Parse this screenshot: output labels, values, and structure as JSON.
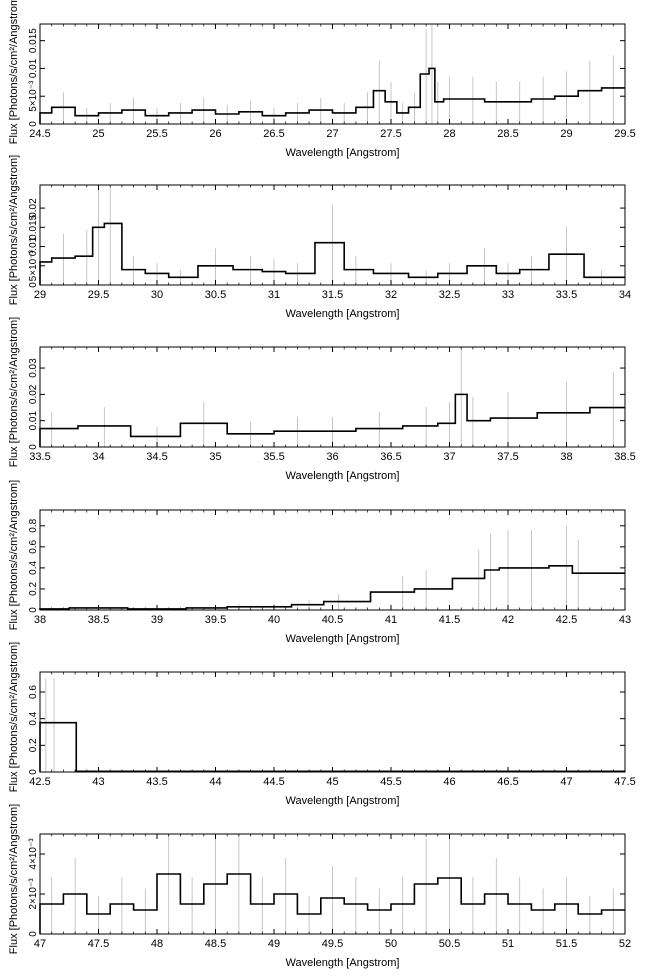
{
  "chart_data": [
    {
      "type": "line",
      "xlabel": "Wavelength [Angstrom]",
      "ylabel": "Flux [Photons/s/cm²/Angstrom]",
      "xlim": [
        24.5,
        29.5
      ],
      "ylim": [
        0,
        0.018
      ],
      "xticks": [
        "24.5",
        "25",
        "25.5",
        "26",
        "26.5",
        "27",
        "27.5",
        "28",
        "28.5",
        "29",
        "29.5"
      ],
      "yticks": [
        {
          "value": 0,
          "label": "0"
        },
        {
          "value": 0.005,
          "label": "5×10⁻³"
        },
        {
          "value": 0.01,
          "label": "0.01"
        },
        {
          "value": 0.015,
          "label": "0.015"
        }
      ],
      "series": [
        {
          "x": [
            24.5,
            24.7,
            24.9,
            25.1,
            25.3,
            25.5,
            25.7,
            25.9,
            26.1,
            26.3,
            26.5,
            26.7,
            26.9,
            27.1,
            27.3,
            27.4,
            27.5,
            27.6,
            27.7,
            27.8,
            27.85,
            27.9,
            28.0,
            28.2,
            28.4,
            28.6,
            28.8,
            29.0,
            29.2,
            29.4
          ],
          "y": [
            0.002,
            0.003,
            0.0015,
            0.002,
            0.0025,
            0.0015,
            0.002,
            0.0025,
            0.0018,
            0.0022,
            0.0015,
            0.002,
            0.0025,
            0.002,
            0.003,
            0.006,
            0.004,
            0.002,
            0.003,
            0.009,
            0.01,
            0.004,
            0.0045,
            0.0045,
            0.004,
            0.004,
            0.0045,
            0.005,
            0.006,
            0.0065
          ]
        }
      ]
    },
    {
      "type": "line",
      "xlabel": "Wavelength [Angstrom]",
      "ylabel": "Flux [Photons/s/cm²/Angstrom]",
      "xlim": [
        29,
        34
      ],
      "ylim": [
        0,
        0.026
      ],
      "xticks": [
        "29",
        "29.5",
        "30",
        "30.5",
        "31",
        "31.5",
        "32",
        "32.5",
        "33",
        "33.5",
        "34"
      ],
      "yticks": [
        {
          "value": 0,
          "label": "0"
        },
        {
          "value": 0.005,
          "label": "5×10⁻³"
        },
        {
          "value": 0.01,
          "label": "0.01"
        },
        {
          "value": 0.015,
          "label": "0.015"
        },
        {
          "value": 0.02,
          "label": "0.02"
        }
      ],
      "series": [
        {
          "x": [
            29.0,
            29.2,
            29.4,
            29.5,
            29.6,
            29.8,
            30.0,
            30.2,
            30.5,
            30.8,
            31.0,
            31.2,
            31.5,
            31.7,
            32.0,
            32.3,
            32.5,
            32.8,
            33.0,
            33.2,
            33.5,
            33.8
          ],
          "y": [
            0.006,
            0.007,
            0.0075,
            0.015,
            0.016,
            0.004,
            0.003,
            0.002,
            0.005,
            0.004,
            0.0035,
            0.003,
            0.011,
            0.004,
            0.003,
            0.002,
            0.003,
            0.005,
            0.003,
            0.004,
            0.008,
            0.002
          ]
        }
      ]
    },
    {
      "type": "line",
      "xlabel": "Wavelength [Angstrom]",
      "ylabel": "Flux [Photons/s/cm²/Angstrom]",
      "xlim": [
        33.5,
        38.5
      ],
      "ylim": [
        0,
        0.038
      ],
      "xticks": [
        "33.5",
        "34",
        "34.5",
        "35",
        "35.5",
        "36",
        "36.5",
        "37",
        "37.5",
        "38",
        "38.5"
      ],
      "yticks": [
        {
          "value": 0,
          "label": "0"
        },
        {
          "value": 0.01,
          "label": "0.01"
        },
        {
          "value": 0.02,
          "label": "0.02"
        },
        {
          "value": 0.03,
          "label": "0.03"
        }
      ],
      "series": [
        {
          "x": [
            33.6,
            34.05,
            34.5,
            34.9,
            35.3,
            35.7,
            36.0,
            36.4,
            36.8,
            37.0,
            37.1,
            37.2,
            37.5,
            38.0,
            38.4
          ],
          "y": [
            0.007,
            0.008,
            0.004,
            0.009,
            0.005,
            0.006,
            0.006,
            0.007,
            0.008,
            0.009,
            0.02,
            0.01,
            0.011,
            0.013,
            0.015
          ]
        }
      ]
    },
    {
      "type": "line",
      "xlabel": "Wavelength [Angstrom]",
      "ylabel": "Flux [Photons/s/cm²/Angstrom]",
      "xlim": [
        38,
        43
      ],
      "ylim": [
        0,
        0.95
      ],
      "xticks": [
        "38",
        "38.5",
        "39",
        "39.5",
        "40",
        "40.5",
        "41",
        "41.5",
        "42",
        "42.5",
        "43"
      ],
      "yticks": [
        {
          "value": 0,
          "label": "0"
        },
        {
          "value": 0.2,
          "label": "0.2"
        },
        {
          "value": 0.4,
          "label": "0.4"
        },
        {
          "value": 0.6,
          "label": "0.6"
        },
        {
          "value": 0.8,
          "label": "0.8"
        }
      ],
      "series": [
        {
          "x": [
            38.0,
            38.5,
            39.0,
            39.5,
            39.7,
            40.0,
            40.3,
            40.55,
            41.1,
            41.3,
            41.75,
            41.85,
            42.0,
            42.2,
            42.5,
            42.6
          ],
          "y": [
            0.01,
            0.02,
            0.01,
            0.02,
            0.03,
            0.03,
            0.05,
            0.08,
            0.17,
            0.2,
            0.3,
            0.38,
            0.4,
            0.4,
            0.42,
            0.35
          ]
        }
      ]
    },
    {
      "type": "line",
      "xlabel": "Wavelength [Angstrom]",
      "ylabel": "Flux [Photons/s/cm²/Angstrom]",
      "xlim": [
        42.5,
        47.5
      ],
      "ylim": [
        0,
        0.75
      ],
      "xticks": [
        "42.5",
        "43",
        "43.5",
        "44",
        "44.5",
        "45",
        "45.5",
        "46",
        "46.5",
        "47",
        "47.5"
      ],
      "yticks": [
        {
          "value": 0,
          "label": "0"
        },
        {
          "value": 0.2,
          "label": "0.2"
        },
        {
          "value": 0.4,
          "label": "0.4"
        },
        {
          "value": 0.6,
          "label": "0.6"
        }
      ],
      "series": [
        {
          "x": [
            42.55,
            42.62,
            43.0,
            45.0,
            47.4
          ],
          "y": [
            0.37,
            0.37,
            0.005,
            0.005,
            0.005
          ]
        }
      ]
    },
    {
      "type": "line",
      "xlabel": "Wavelength [Angstrom]",
      "ylabel": "Flux [Photons/s/cm²/Angstrom]",
      "xlim": [
        47,
        52
      ],
      "ylim": [
        0,
        0.005
      ],
      "xticks": [
        "47",
        "47.5",
        "48",
        "48.5",
        "49",
        "49.5",
        "50",
        "50.5",
        "51",
        "51.5",
        "52"
      ],
      "yticks": [
        {
          "value": 0,
          "label": "0"
        },
        {
          "value": 0.002,
          "label": "2×10⁻³"
        },
        {
          "value": 0.004,
          "label": "4×10⁻³"
        }
      ],
      "series": [
        {
          "x": [
            47.1,
            47.3,
            47.5,
            47.7,
            47.9,
            48.1,
            48.3,
            48.5,
            48.7,
            48.9,
            49.1,
            49.3,
            49.5,
            49.7,
            49.9,
            50.1,
            50.3,
            50.5,
            50.7,
            50.9,
            51.1,
            51.3,
            51.5,
            51.7,
            51.9
          ],
          "y": [
            0.0015,
            0.002,
            0.001,
            0.0015,
            0.0012,
            0.003,
            0.0015,
            0.0025,
            0.003,
            0.0015,
            0.002,
            0.001,
            0.0018,
            0.0015,
            0.0012,
            0.0015,
            0.0025,
            0.0028,
            0.0015,
            0.002,
            0.0015,
            0.0012,
            0.0015,
            0.001,
            0.0012
          ]
        }
      ]
    }
  ]
}
